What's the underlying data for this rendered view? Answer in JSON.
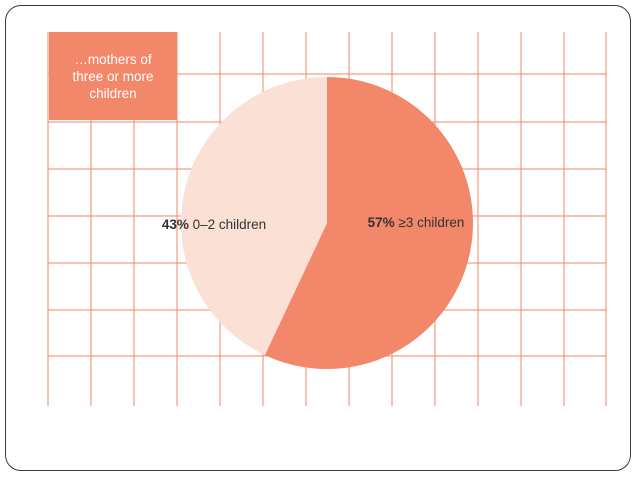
{
  "caption": "…mothers of\nthree or more\nchildren",
  "colors": {
    "grid": "#f3876a",
    "slice_3plus": "#f3876a",
    "slice_0to2": "#fbe0d5",
    "caption_bg": "#f3876a"
  },
  "chart_data": {
    "type": "pie",
    "categories": [
      "≥3 children",
      "0–2 children"
    ],
    "values": [
      57,
      43
    ],
    "labels": [
      {
        "pct": "57%",
        "text": " ≥3 children"
      },
      {
        "pct": "43%",
        "text": " 0–2 children"
      }
    ],
    "title": "",
    "grid": true
  }
}
